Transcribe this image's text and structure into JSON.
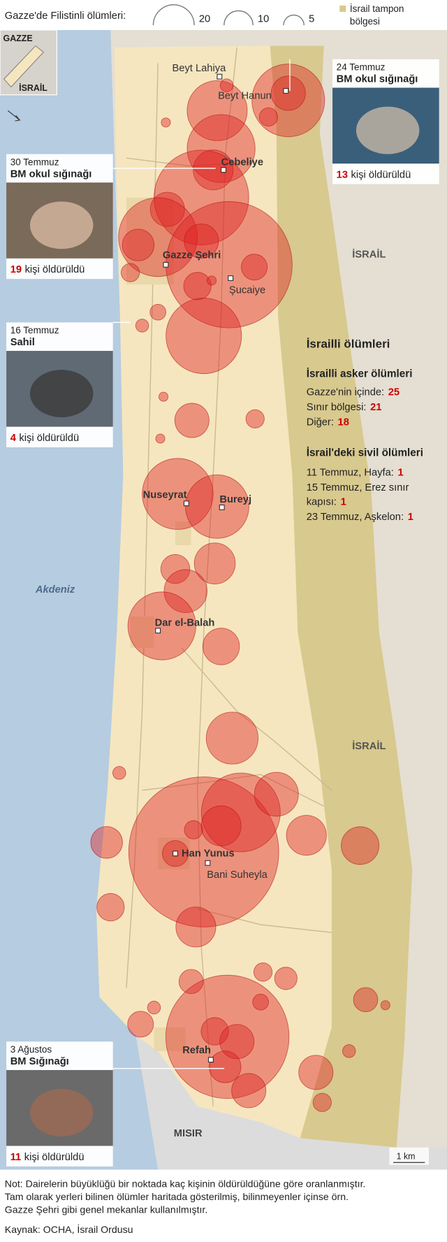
{
  "legend": {
    "title": "Gazze'de Filistinli ölümleri:",
    "sizes": [
      20,
      10,
      5
    ],
    "buffer_label": [
      "İsrail tampon",
      "bölgesi"
    ]
  },
  "inset": {
    "gaza": "GAZZE",
    "israel": "İSRAİL"
  },
  "places": [
    "Beyt Lahiya",
    "Beyt Hanun",
    "Cebeliye",
    "Gazze Şehri",
    "Şucaiye",
    "Nuseyrat",
    "Bureyj",
    "Dar el-Balah",
    "Han Yunus",
    "Bani Suheyla",
    "Refah"
  ],
  "regions": {
    "sea": "Akdeniz",
    "israel_north": "İSRAİL",
    "israel_south": "İSRAİL",
    "egypt": "MISIR"
  },
  "callouts": [
    {
      "date": "24 Temmuz",
      "place": "BM okul sığınağı",
      "count": 13,
      "suffix": "kişi öldürüldü"
    },
    {
      "date": "30 Temmuz",
      "place": "BM okul sığınağı",
      "count": 19,
      "suffix": "kişi öldürüldü"
    },
    {
      "date": "16 Temmuz",
      "place": "Sahil",
      "count": 4,
      "suffix": "kişi öldürüldü"
    },
    {
      "date": "3 Ağustos",
      "place": "BM Sığınağı",
      "count": 11,
      "suffix": "kişi öldürüldü"
    }
  ],
  "israeli_deaths": {
    "title": "İsrailli ölümleri",
    "soldiers_title": "İsrailli asker ölümleri",
    "soldiers": [
      {
        "label": "Gazze'nin içinde:",
        "value": 25
      },
      {
        "label": "Sınır bölgesi:",
        "value": 21
      },
      {
        "label": "Diğer:",
        "value": 18
      }
    ],
    "civilians_title": "İsrail'deki sivil ölümleri",
    "civilians": [
      {
        "label": [
          "11 Temmuz, Hayfa:"
        ],
        "value": 1
      },
      {
        "label": [
          "15 Temmuz, Erez sınır",
          "kapısı:"
        ],
        "value": 1
      },
      {
        "label": [
          "23 Temmuz, Aşkelon:"
        ],
        "value": 1
      }
    ]
  },
  "scale": "1 km",
  "note": [
    "Not: Dairelerin büyüklüğü bir noktada kaç kişinin öldürüldüğüne göre oranlanmıştır.",
    "Tam olarak yerleri bilinen ölümler haritada gösterilmiş, bilinmeyenler içinse örn.",
    "Gazze Şehri gibi genel mekanlar kullanılmıştır."
  ],
  "source": "Kaynak: OCHA, İsrail Ordusu",
  "circles": [
    63,
    14,
    43,
    2,
    1,
    4,
    55,
    19,
    107,
    14,
    74,
    12,
    190,
    14,
    8,
    9,
    4,
    68,
    2,
    3,
    1,
    1,
    14,
    4,
    1,
    60,
    48,
    20,
    10,
    22,
    55,
    16,
    32,
    2,
    268,
    74,
    19,
    23,
    12,
    8,
    4,
    19,
    17,
    9,
    19,
    7,
    181,
    9,
    14,
    12,
    14,
    8,
    2,
    4,
    6,
    3,
    14,
    4,
    7,
    1,
    2
  ]
}
